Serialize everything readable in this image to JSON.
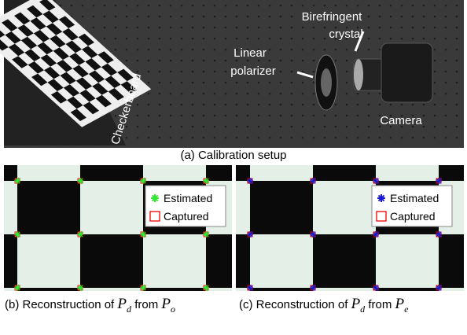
{
  "photo": {
    "labels": {
      "checkerboard": "Checkerboard",
      "polarizer": [
        "Linear",
        "polarizer"
      ],
      "crystal": [
        "Birefringent",
        "crystal"
      ],
      "camera": "Camera"
    }
  },
  "captions": {
    "a": "(a) Calibration setup",
    "b": {
      "prefix": "(b) Reconstruction of",
      "sym1": "P",
      "sub1": "d",
      "mid": "from",
      "sym2": "P",
      "sub2": "o"
    },
    "c": {
      "prefix": "(c) Reconstruction of",
      "sym1": "P",
      "sub1": "d",
      "mid": "from",
      "sym2": "P",
      "sub2": "e"
    }
  },
  "panels": [
    {
      "legend": [
        "Estimated",
        "Captured"
      ]
    },
    {
      "legend": [
        "Estimated",
        "Captured"
      ]
    }
  ]
}
